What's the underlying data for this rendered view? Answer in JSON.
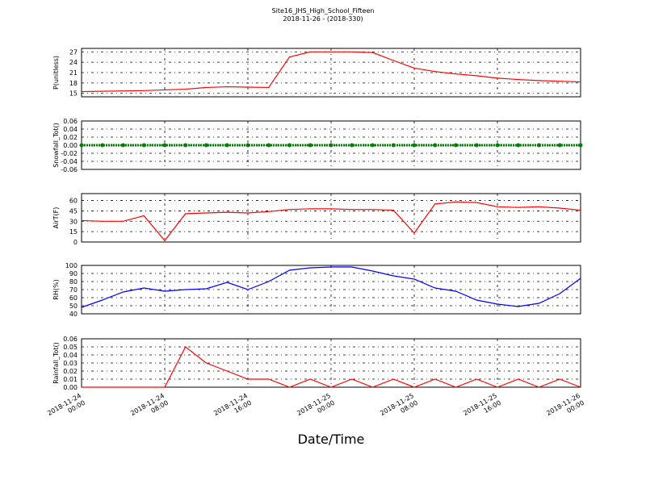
{
  "chart_data": [
    {
      "type": "line",
      "title": "Site16_JHS_High_School_Fifteen",
      "subtitle": "2018-11-26 - (2018-330)",
      "ylabel": "P(unitless)",
      "color": "#ff0000",
      "x": [
        "2018-11-24 00:00",
        "2018-11-24 02:00",
        "2018-11-24 04:00",
        "2018-11-24 06:00",
        "2018-11-24 08:00",
        "2018-11-24 10:00",
        "2018-11-24 12:00",
        "2018-11-24 14:00",
        "2018-11-24 16:00",
        "2018-11-24 18:00",
        "2018-11-24 20:00",
        "2018-11-24 22:00",
        "2018-11-25 00:00",
        "2018-11-25 02:00",
        "2018-11-25 04:00",
        "2018-11-25 06:00",
        "2018-11-25 08:00",
        "2018-11-25 10:00",
        "2018-11-25 12:00",
        "2018-11-25 14:00",
        "2018-11-25 16:00",
        "2018-11-25 18:00",
        "2018-11-25 20:00",
        "2018-11-25 22:00",
        "2018-11-26 00:00"
      ],
      "values": [
        15.5,
        15.6,
        15.7,
        15.8,
        16.0,
        16.2,
        16.7,
        16.9,
        16.8,
        16.7,
        25.5,
        27.0,
        27.0,
        27.0,
        26.8,
        24.5,
        22.3,
        21.3,
        20.6,
        20.1,
        19.4,
        19.0,
        18.7,
        18.5,
        18.3
      ],
      "ylim": [
        14,
        28
      ],
      "yticks": [
        15,
        18,
        21,
        24,
        27
      ],
      "grid": true
    },
    {
      "type": "scatter",
      "ylabel": "Snowfall_Tot()",
      "color": "#008000",
      "x": [
        "2018-11-24 00:00",
        "2018-11-24 02:00",
        "2018-11-24 04:00",
        "2018-11-24 06:00",
        "2018-11-24 08:00",
        "2018-11-24 10:00",
        "2018-11-24 12:00",
        "2018-11-24 14:00",
        "2018-11-24 16:00",
        "2018-11-24 18:00",
        "2018-11-24 20:00",
        "2018-11-24 22:00",
        "2018-11-25 00:00",
        "2018-11-25 02:00",
        "2018-11-25 04:00",
        "2018-11-25 06:00",
        "2018-11-25 08:00",
        "2018-11-25 10:00",
        "2018-11-25 12:00",
        "2018-11-25 14:00",
        "2018-11-25 16:00",
        "2018-11-25 18:00",
        "2018-11-25 20:00",
        "2018-11-25 22:00",
        "2018-11-26 00:00"
      ],
      "values": [
        0,
        0,
        0,
        0,
        0,
        0,
        0,
        0,
        0,
        0,
        0,
        0,
        0,
        0,
        0,
        0,
        0,
        0,
        0,
        0,
        0,
        0,
        0,
        0,
        0
      ],
      "ylim": [
        -0.06,
        0.06
      ],
      "yticks": [
        -0.06,
        -0.04,
        -0.02,
        {
          "value": 0,
          "label": "0.00"
        },
        0.02,
        0.04,
        0.06
      ],
      "grid": true
    },
    {
      "type": "line",
      "ylabel": "AirT(F)",
      "color": "#ff0000",
      "x": [
        "2018-11-24 00:00",
        "2018-11-24 02:00",
        "2018-11-24 04:00",
        "2018-11-24 06:00",
        "2018-11-24 08:00",
        "2018-11-24 10:00",
        "2018-11-24 12:00",
        "2018-11-24 14:00",
        "2018-11-24 16:00",
        "2018-11-24 18:00",
        "2018-11-24 20:00",
        "2018-11-24 22:00",
        "2018-11-25 00:00",
        "2018-11-25 02:00",
        "2018-11-25 04:00",
        "2018-11-25 06:00",
        "2018-11-25 08:00",
        "2018-11-25 10:00",
        "2018-11-25 12:00",
        "2018-11-25 14:00",
        "2018-11-25 16:00",
        "2018-11-25 18:00",
        "2018-11-25 20:00",
        "2018-11-25 22:00",
        "2018-11-26 00:00"
      ],
      "values": [
        31,
        30,
        30,
        38,
        2,
        41,
        42,
        43,
        42,
        44,
        47,
        48,
        48,
        47,
        47,
        46,
        13,
        55,
        58,
        57,
        51,
        50,
        51,
        49,
        46
      ],
      "ylim": [
        0,
        70
      ],
      "yticks": [
        0,
        15,
        30,
        45,
        60
      ],
      "grid": true
    },
    {
      "type": "line",
      "ylabel": "RH(%)",
      "color": "#0000ff",
      "x": [
        "2018-11-24 00:00",
        "2018-11-24 02:00",
        "2018-11-24 04:00",
        "2018-11-24 06:00",
        "2018-11-24 08:00",
        "2018-11-24 10:00",
        "2018-11-24 12:00",
        "2018-11-24 14:00",
        "2018-11-24 16:00",
        "2018-11-24 18:00",
        "2018-11-24 20:00",
        "2018-11-24 22:00",
        "2018-11-25 00:00",
        "2018-11-25 02:00",
        "2018-11-25 04:00",
        "2018-11-25 06:00",
        "2018-11-25 08:00",
        "2018-11-25 10:00",
        "2018-11-25 12:00",
        "2018-11-25 14:00",
        "2018-11-25 16:00",
        "2018-11-25 18:00",
        "2018-11-25 20:00",
        "2018-11-25 22:00",
        "2018-11-26 00:00"
      ],
      "values": [
        48,
        57,
        67,
        72,
        68,
        70,
        71,
        79,
        70,
        80,
        94,
        97,
        98,
        98,
        93,
        87,
        83,
        72,
        68,
        57,
        52,
        49,
        53,
        65,
        84
      ],
      "ylim": [
        40,
        100
      ],
      "yticks": [
        40,
        50,
        60,
        70,
        80,
        90,
        100
      ],
      "grid": true
    },
    {
      "type": "line",
      "ylabel": "Rainfall_Tot()",
      "xlabel": "Date/Time",
      "color": "#ff0000",
      "x": [
        "2018-11-24 00:00",
        "2018-11-24 02:00",
        "2018-11-24 04:00",
        "2018-11-24 06:00",
        "2018-11-24 08:00",
        "2018-11-24 10:00",
        "2018-11-24 12:00",
        "2018-11-24 14:00",
        "2018-11-24 16:00",
        "2018-11-24 18:00",
        "2018-11-24 20:00",
        "2018-11-24 22:00",
        "2018-11-25 00:00",
        "2018-11-25 02:00",
        "2018-11-25 04:00",
        "2018-11-25 06:00",
        "2018-11-25 08:00",
        "2018-11-25 10:00",
        "2018-11-25 12:00",
        "2018-11-25 14:00",
        "2018-11-25 16:00",
        "2018-11-25 18:00",
        "2018-11-25 20:00",
        "2018-11-25 22:00",
        "2018-11-26 00:00"
      ],
      "values": [
        0,
        0,
        0,
        0,
        0,
        0.05,
        0.03,
        0.02,
        0.01,
        0.01,
        0,
        0.01,
        0,
        0.01,
        0,
        0.01,
        0,
        0.01,
        0,
        0.01,
        0,
        0.01,
        0,
        0.01,
        0
      ],
      "ylim": [
        0,
        0.06
      ],
      "yticks": [
        {
          "value": 0,
          "label": "0.00"
        },
        0.01,
        0.02,
        0.03,
        0.04,
        0.05,
        0.06
      ],
      "grid": true,
      "xlim": [
        "2018-11-24 00:00",
        "2018-11-26 00:00"
      ],
      "xticks": [
        "2018-11-24 00:00",
        "2018-11-24 08:00",
        "2018-11-24 16:00",
        "2018-11-25 00:00",
        "2018-11-25 08:00",
        "2018-11-25 16:00",
        "2018-11-26 00:00"
      ]
    }
  ]
}
